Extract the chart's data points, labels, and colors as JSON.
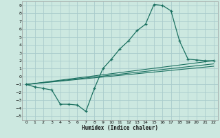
{
  "xlabel": "Humidex (Indice chaleur)",
  "bg_color": "#cce8e0",
  "grid_color": "#aacccc",
  "line_color": "#1a7060",
  "xlim": [
    -0.5,
    22.5
  ],
  "ylim": [
    -5.5,
    9.5
  ],
  "xticks": [
    0,
    1,
    2,
    3,
    4,
    5,
    6,
    7,
    8,
    9,
    10,
    11,
    12,
    13,
    14,
    15,
    16,
    17,
    18,
    19,
    20,
    21,
    22
  ],
  "yticks": [
    -5,
    -4,
    -3,
    -2,
    -1,
    0,
    1,
    2,
    3,
    4,
    5,
    6,
    7,
    8,
    9
  ],
  "curve_x": [
    0,
    1,
    2,
    3,
    4,
    5,
    6,
    7,
    8,
    9,
    10,
    11,
    12,
    13,
    14,
    15,
    16,
    17,
    18,
    19,
    20,
    21,
    22
  ],
  "curve_y": [
    -1.0,
    -1.3,
    -1.5,
    -1.7,
    -3.5,
    -3.5,
    -3.6,
    -4.4,
    -1.5,
    1.0,
    2.2,
    3.5,
    4.5,
    5.8,
    6.6,
    9.1,
    9.0,
    8.3,
    4.5,
    2.2,
    2.1,
    2.0,
    2.0
  ],
  "line2_x": [
    0,
    22
  ],
  "line2_y": [
    -1.0,
    2.0
  ],
  "line3_x": [
    0,
    22
  ],
  "line3_y": [
    -1.0,
    1.6
  ],
  "line4_x": [
    0,
    22
  ],
  "line4_y": [
    -1.0,
    1.3
  ]
}
